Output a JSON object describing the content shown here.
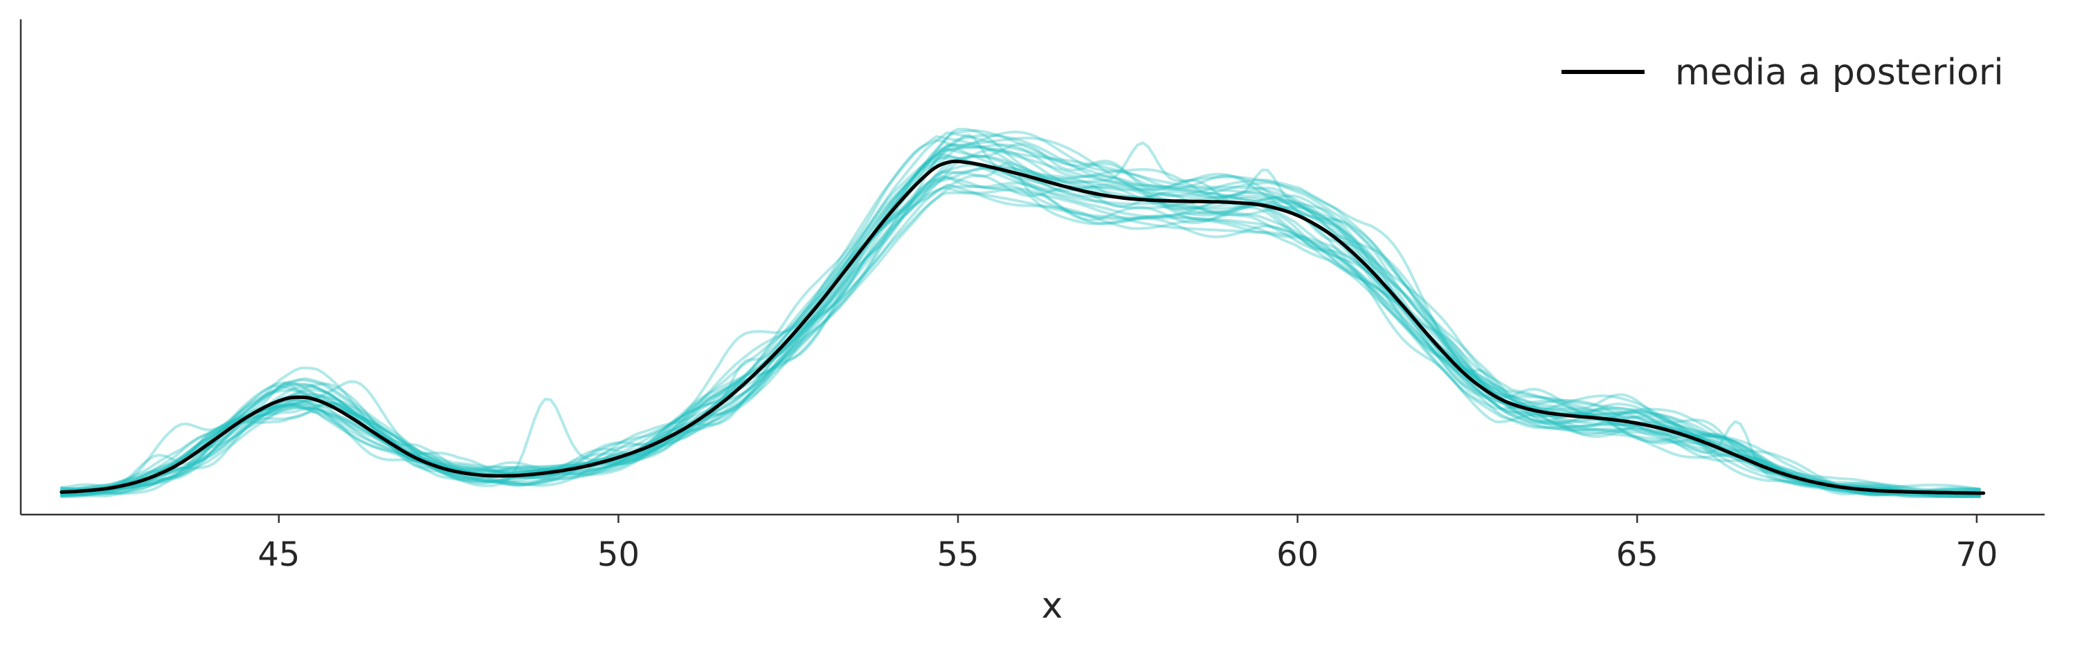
{
  "chart_data": {
    "type": "line",
    "title": "",
    "xlabel": "x",
    "ylabel": "",
    "xlim": [
      41.2,
      71.0
    ],
    "ylim": [
      0.0,
      0.0767
    ],
    "xticks": [
      45,
      50,
      55,
      60,
      65,
      70
    ],
    "xtick_labels": [
      "45",
      "50",
      "55",
      "60",
      "65",
      "70"
    ],
    "yticks_visible": false,
    "grid": false,
    "legend": {
      "position": "top-right",
      "entries": [
        "media a posteriori"
      ]
    },
    "colors": {
      "mean": "#000000",
      "samples": "#22c1c1",
      "axis": "#333333"
    },
    "samples": {
      "count": 30,
      "opacity": 0.35
    },
    "series": [
      {
        "name": "media a posteriori",
        "x": [
          41.8,
          42.5,
          43.0,
          43.5,
          44.0,
          44.5,
          45.0,
          45.3,
          45.6,
          46.0,
          46.5,
          47.0,
          47.5,
          48.0,
          48.5,
          49.0,
          49.5,
          50.0,
          50.5,
          51.0,
          51.5,
          52.0,
          52.5,
          53.0,
          53.5,
          54.0,
          54.5,
          54.8,
          55.2,
          55.5,
          56.0,
          56.5,
          57.0,
          57.5,
          58.0,
          58.5,
          59.0,
          59.5,
          60.0,
          60.5,
          61.0,
          61.5,
          62.0,
          62.5,
          63.0,
          63.5,
          64.0,
          64.5,
          65.0,
          65.5,
          66.0,
          66.5,
          67.0,
          67.5,
          68.0,
          68.5,
          69.0,
          69.5,
          70.1
        ],
        "y": [
          0.0034,
          0.004,
          0.0052,
          0.0075,
          0.0112,
          0.015,
          0.0178,
          0.0184,
          0.0178,
          0.0155,
          0.012,
          0.0087,
          0.0068,
          0.006,
          0.006,
          0.0065,
          0.0074,
          0.0088,
          0.0107,
          0.0134,
          0.017,
          0.0216,
          0.027,
          0.0332,
          0.04,
          0.0468,
          0.0525,
          0.0549,
          0.0545,
          0.0538,
          0.0525,
          0.051,
          0.0497,
          0.0489,
          0.0486,
          0.0485,
          0.0484,
          0.048,
          0.0465,
          0.0435,
          0.0388,
          0.033,
          0.0268,
          0.0212,
          0.0176,
          0.016,
          0.0153,
          0.0149,
          0.0142,
          0.013,
          0.0112,
          0.009,
          0.0068,
          0.0052,
          0.0042,
          0.0037,
          0.0035,
          0.0034,
          0.0033
        ]
      }
    ]
  }
}
